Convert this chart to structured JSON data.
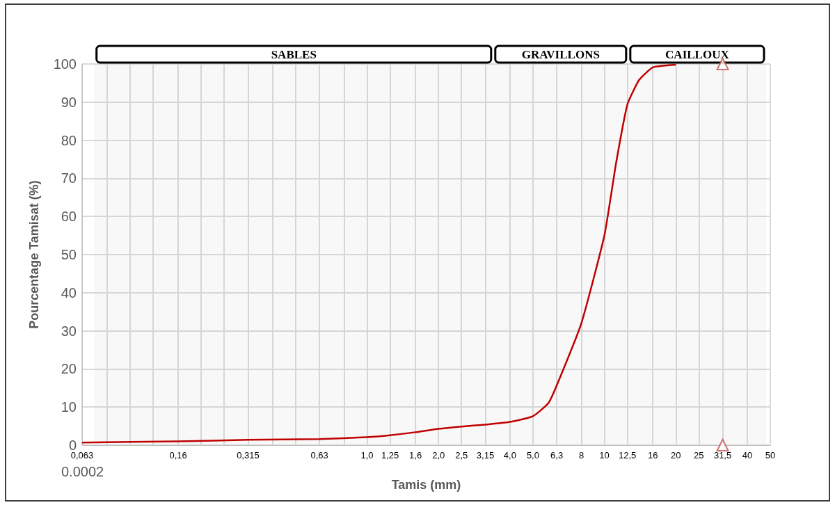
{
  "chart_data": {
    "type": "line",
    "xlabel": "Tamis (mm)",
    "ylabel": "Pourcentage Tamisat (%)",
    "log": "x",
    "xlim": [
      0.063,
      50
    ],
    "ylim": [
      0,
      100
    ],
    "xticks": [
      {
        "value": 0.063,
        "label": "0,063"
      },
      {
        "value": 0.08,
        "label": null
      },
      {
        "value": 0.1,
        "label": null
      },
      {
        "value": 0.125,
        "label": null
      },
      {
        "value": 0.16,
        "label": "0,16"
      },
      {
        "value": 0.2,
        "label": null
      },
      {
        "value": 0.25,
        "label": null
      },
      {
        "value": 0.315,
        "label": "0,315"
      },
      {
        "value": 0.4,
        "label": null
      },
      {
        "value": 0.5,
        "label": null
      },
      {
        "value": 0.63,
        "label": "0,63"
      },
      {
        "value": 0.8,
        "label": null
      },
      {
        "value": 1,
        "label": "1,0"
      },
      {
        "value": 1.25,
        "label": "1,25"
      },
      {
        "value": 1.6,
        "label": "1,6"
      },
      {
        "value": 2,
        "label": "2,0"
      },
      {
        "value": 2.5,
        "label": "2,5"
      },
      {
        "value": 3.15,
        "label": "3,15"
      },
      {
        "value": 4,
        "label": "4,0"
      },
      {
        "value": 5,
        "label": "5,0"
      },
      {
        "value": 6.3,
        "label": "6,3"
      },
      8,
      10,
      {
        "value": 12.5,
        "label": "12,5"
      },
      16,
      20,
      25,
      {
        "value": 31.5,
        "label": "31,5"
      },
      40,
      50
    ],
    "yticks": [
      0,
      10,
      20,
      30,
      40,
      50,
      60,
      70,
      80,
      90,
      100
    ],
    "grid": true,
    "series": [
      {
        "color": "#c00000",
        "marker": "none",
        "line_style": "solid",
        "x": [
          0.063,
          0.16,
          0.315,
          0.63,
          1,
          1.25,
          1.6,
          2,
          2.5,
          3.15,
          4,
          5,
          5.8,
          6.3,
          8,
          10,
          11.2,
          12.5,
          14,
          16,
          20
        ],
        "values": [
          0.7,
          1.0,
          1.4,
          1.6,
          2.1,
          2.6,
          3.4,
          4.3,
          4.9,
          5.4,
          6.1,
          7.6,
          11,
          15.7,
          32,
          55,
          74,
          89.4,
          95.8,
          99.1,
          99.8
        ]
      },
      {
        "type": "scatter",
        "color": "#c0504d",
        "marker": "triangle",
        "x": [
          31.5,
          31.5
        ],
        "values": [
          100,
          0
        ]
      }
    ],
    "bands": [
      {
        "axis": "x",
        "from": 0.071,
        "to": 3.4,
        "label": "SABLES"
      },
      {
        "axis": "x",
        "from": 3.4,
        "to": 12.6,
        "label": "GRAVILLONS"
      },
      {
        "axis": "x",
        "from": 12.6,
        "to": 48,
        "label": "CAILLOUX"
      }
    ],
    "annotations": [
      "0.0002"
    ]
  }
}
